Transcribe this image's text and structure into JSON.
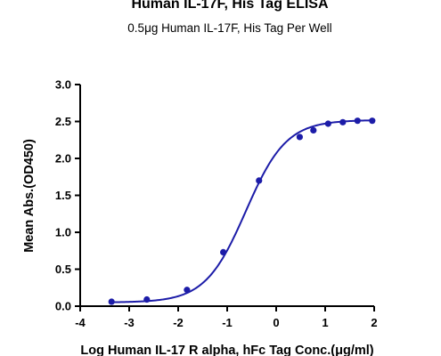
{
  "chart_data": {
    "type": "scatter",
    "title": "Human IL-17F, His Tag ELISA",
    "subtitle": "0.5μg Human IL-17F, His Tag Per Well",
    "xlabel": "Log Human IL-17 R alpha, hFc Tag Conc.(μg/ml)",
    "ylabel": "Mean Abs.(OD450)",
    "xlim": [
      -4,
      2
    ],
    "ylim": [
      0,
      3.0
    ],
    "x_ticks": [
      "-4",
      "-3",
      "-2",
      "-1",
      "0",
      "1",
      "2"
    ],
    "y_ticks": [
      "0.0",
      "0.5",
      "1.0",
      "1.5",
      "2.0",
      "2.5",
      "3.0"
    ],
    "grid": false,
    "series": [
      {
        "color": "#1c1ca8",
        "points": [
          {
            "x": -3.36,
            "y": 0.06
          },
          {
            "x": -2.64,
            "y": 0.09
          },
          {
            "x": -1.82,
            "y": 0.22
          },
          {
            "x": -1.08,
            "y": 0.73
          },
          {
            "x": -0.35,
            "y": 1.7
          },
          {
            "x": 0.48,
            "y": 2.29
          },
          {
            "x": 0.76,
            "y": 2.38
          },
          {
            "x": 1.06,
            "y": 2.47
          },
          {
            "x": 1.36,
            "y": 2.49
          },
          {
            "x": 1.66,
            "y": 2.51
          },
          {
            "x": 1.96,
            "y": 2.51
          }
        ],
        "fit": {
          "model": "4PL",
          "bottom": 0.05,
          "top": 2.52,
          "log_ec50": -0.62,
          "hill": 1.05
        }
      }
    ]
  }
}
